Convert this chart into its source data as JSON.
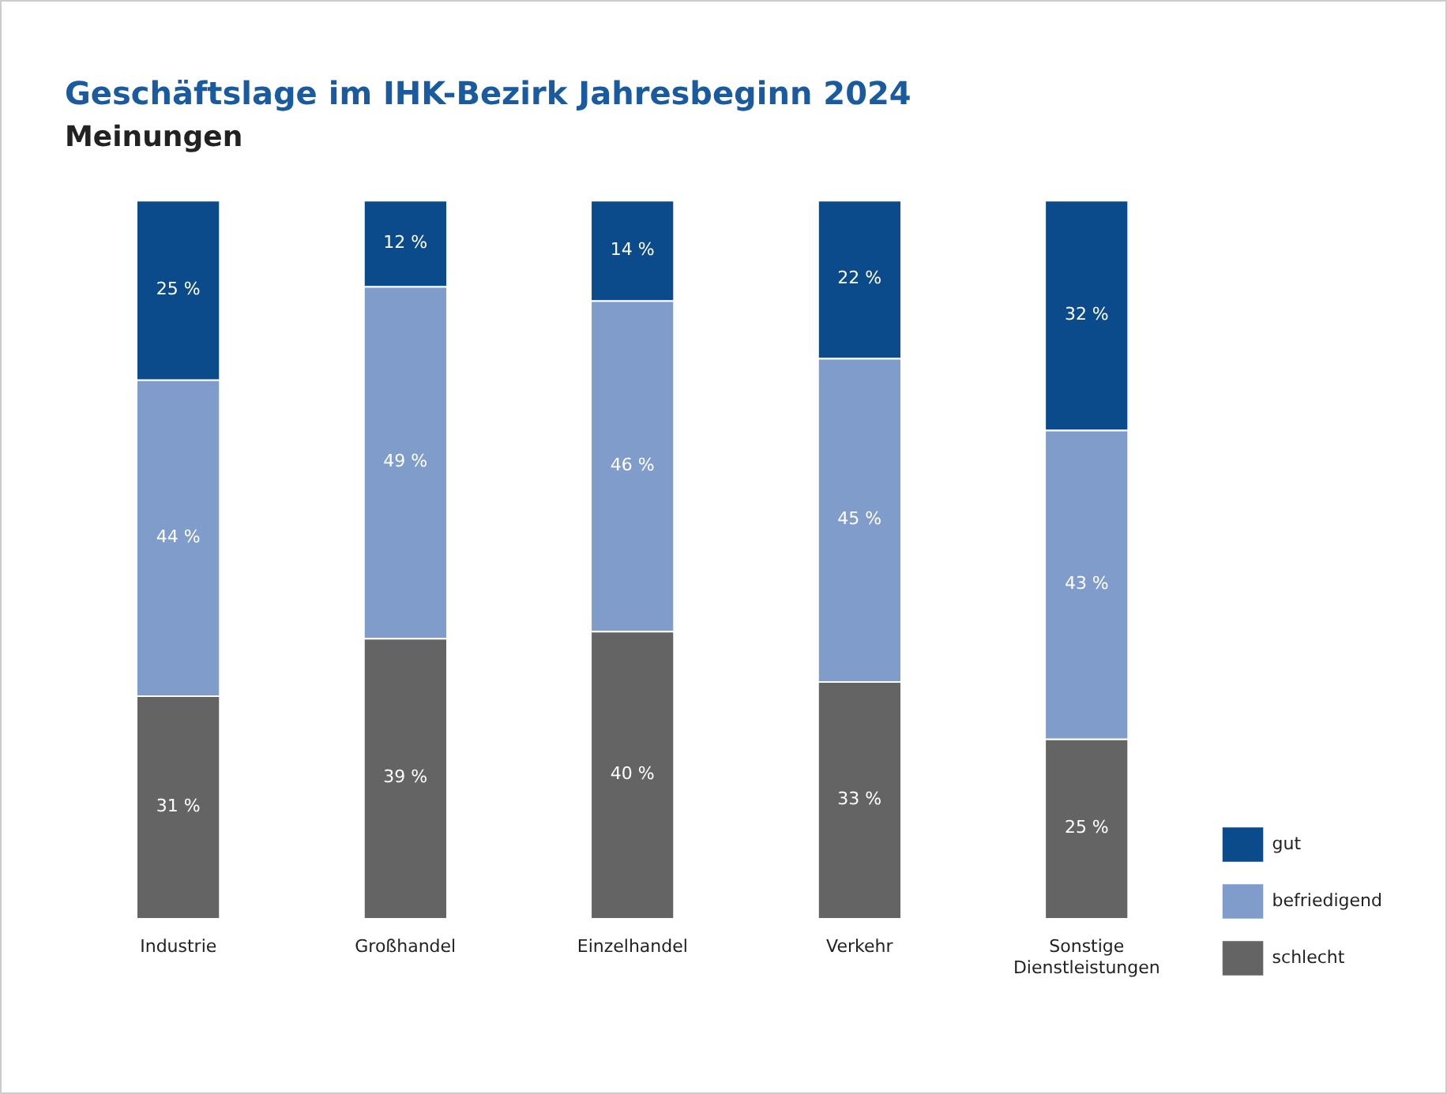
{
  "chart_data": {
    "type": "bar",
    "title": "Geschäftslage im IHK-Bezirk Jahresbeginn 2024",
    "subtitle": "Meinungen",
    "categories": [
      "Industrie",
      "Großhandel",
      "Einzelhandel",
      "Verkehr",
      "Sonstige Dienstleistungen"
    ],
    "stacked": true,
    "ylim": [
      0,
      100
    ],
    "tick_labels": "x",
    "grid": false,
    "legend": "bottom right",
    "series": [
      {
        "name": "schlecht",
        "color": "#646464",
        "values": [
          31,
          39,
          40,
          33,
          25
        ],
        "value_labels": [
          "31 %",
          "39 %",
          "40 %",
          "33 %",
          "25 %"
        ]
      },
      {
        "name": "befriedigend",
        "color": "#7f9ccb",
        "values": [
          44,
          49,
          46,
          45,
          43
        ],
        "value_labels": [
          "44 %",
          "49 %",
          "46 %",
          "45 %",
          "43 %"
        ]
      },
      {
        "name": "gut",
        "color": "#0b4a8b",
        "values": [
          25,
          12,
          14,
          22,
          32
        ],
        "value_labels": [
          "25 %",
          "12 %",
          "14 %",
          "22 %",
          "32 %"
        ]
      }
    ]
  }
}
